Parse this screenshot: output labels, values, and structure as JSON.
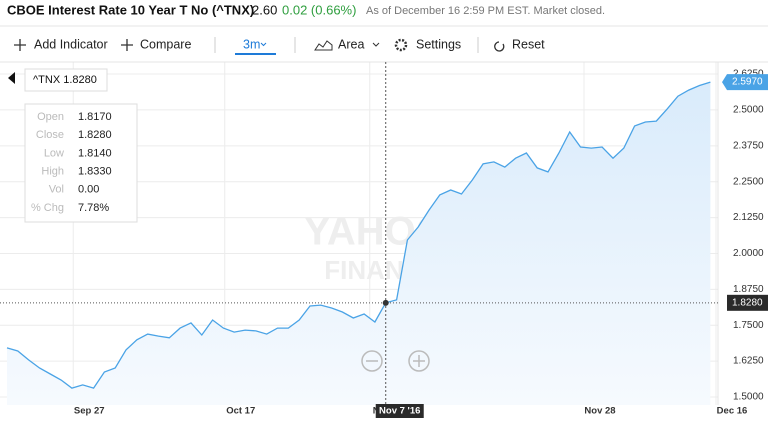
{
  "header": {
    "title": "CBOE Interest Rate 10 Year T No (^TNX)",
    "price": "2.60",
    "change": "0.02 (0.66%)",
    "status": "As of December 16 2:59 PM EST. Market closed."
  },
  "toolbar": {
    "add_indicator": "Add Indicator",
    "compare": "Compare",
    "range": "3m",
    "chart_type": "Area",
    "settings": "Settings",
    "reset": "Reset"
  },
  "chart_data": {
    "type": "area",
    "color": "#4aa3e6",
    "fill": "#e6f2fc",
    "grid": true,
    "x": [
      0,
      1,
      2,
      3,
      4,
      5,
      6,
      7,
      8,
      9,
      10,
      11,
      12,
      13,
      14,
      15,
      16,
      17,
      18,
      19,
      20,
      21,
      22,
      23,
      24,
      25,
      26,
      27,
      28,
      29,
      30,
      31,
      32,
      33,
      34,
      35,
      36,
      37,
      38,
      39,
      40,
      41,
      42,
      43,
      44,
      45,
      46,
      47,
      48,
      49,
      50,
      51,
      52,
      53,
      54,
      55,
      56,
      57,
      58,
      59,
      60,
      61,
      62,
      63,
      64,
      65
    ],
    "values": [
      1.671,
      1.66,
      1.629,
      1.601,
      1.58,
      1.559,
      1.531,
      1.542,
      1.531,
      1.587,
      1.601,
      1.664,
      1.699,
      1.719,
      1.712,
      1.706,
      1.74,
      1.758,
      1.716,
      1.768,
      1.74,
      1.726,
      1.733,
      1.73,
      1.719,
      1.74,
      1.74,
      1.768,
      1.817,
      1.82,
      1.81,
      1.796,
      1.775,
      1.789,
      1.761,
      1.828,
      1.838,
      2.047,
      2.092,
      2.151,
      2.204,
      2.221,
      2.207,
      2.256,
      2.312,
      2.319,
      2.301,
      2.332,
      2.35,
      2.298,
      2.284,
      2.35,
      2.423,
      2.371,
      2.367,
      2.371,
      2.332,
      2.367,
      2.444,
      2.458,
      2.461,
      2.503,
      2.548,
      2.569,
      2.585,
      2.597
    ],
    "xlim": [
      0,
      67
    ],
    "xticks": [
      {
        "value": 7.6,
        "label": "Sep 27"
      },
      {
        "value": 21.6,
        "label": "Oct 17"
      },
      {
        "value": 35,
        "label": "Nov 7"
      },
      {
        "value": 54.8,
        "label": "Nov 28"
      },
      {
        "value": 67,
        "label": "Dec 16"
      }
    ],
    "ylim": [
      1.472,
      2.667
    ],
    "yticks": [
      {
        "value": 1.5,
        "label": "1.5000"
      },
      {
        "value": 1.625,
        "label": "1.6250"
      },
      {
        "value": 1.75,
        "label": "1.7500"
      },
      {
        "value": 1.875,
        "label": "1.8750"
      },
      {
        "value": 2,
        "label": "2.0000"
      },
      {
        "value": 2.125,
        "label": "2.1250"
      },
      {
        "value": 2.25,
        "label": "2.2500"
      },
      {
        "value": 2.375,
        "label": "2.3750"
      },
      {
        "value": 2.5,
        "label": "2.5000"
      },
      {
        "value": 2.625,
        "label": "2.6250"
      }
    ],
    "last_price": {
      "value": 2.597,
      "label": "2.5970"
    },
    "crosshair": {
      "x": 35,
      "value": 1.828,
      "value_label": "1.8280",
      "x_label": "Nov 7 '16"
    },
    "watermark": [
      "YAHOO!",
      "FINANCE"
    ],
    "tooltip": {
      "title": "^TNX 1.8280",
      "rows": [
        {
          "label": "Open",
          "value": "1.8170"
        },
        {
          "label": "Close",
          "value": "1.8280"
        },
        {
          "label": "Low",
          "value": "1.8140"
        },
        {
          "label": "High",
          "value": "1.8330"
        },
        {
          "label": "Vol",
          "value": "0.00"
        },
        {
          "label": "% Chg",
          "value": "7.78%"
        }
      ]
    }
  }
}
